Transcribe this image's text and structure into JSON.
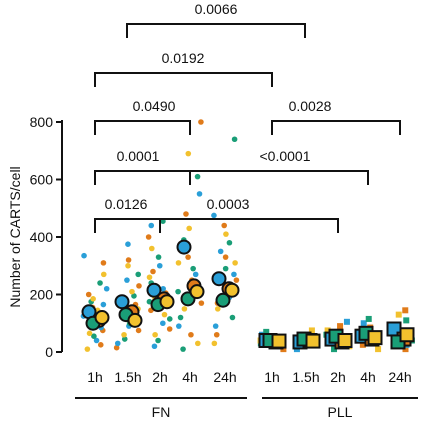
{
  "chart_data": {
    "type": "scatter",
    "ylabel": "Number of CARTS/cell",
    "ylim": [
      0,
      800
    ],
    "y_ticks": [
      0,
      200,
      400,
      600,
      800
    ],
    "groups": [
      {
        "name": "FN",
        "categories": [
          "1h",
          "1.5h",
          "2h",
          "4h",
          "24h"
        ],
        "marker": "circle"
      },
      {
        "name": "PLL",
        "categories": [
          "1h",
          "1.5h",
          "2h",
          "4h",
          "24h"
        ],
        "marker": "square"
      }
    ],
    "palette": [
      "#f2c12e",
      "#e07b1a",
      "#2a9fd8",
      "#1a9e77",
      "#bfe3ff"
    ],
    "replicate_means": [
      {
        "group": "FN",
        "category": "1h",
        "values": [
          140,
          110,
          100,
          120
        ]
      },
      {
        "group": "FN",
        "category": "1.5h",
        "values": [
          175,
          140,
          130,
          110
        ]
      },
      {
        "group": "FN",
        "category": "2h",
        "values": [
          215,
          185,
          165,
          175
        ]
      },
      {
        "group": "FN",
        "category": "4h",
        "values": [
          365,
          230,
          185,
          210
        ]
      },
      {
        "group": "FN",
        "category": "24h",
        "values": [
          255,
          220,
          180,
          215
        ]
      },
      {
        "group": "PLL",
        "category": "1h",
        "values": [
          40,
          35,
          40,
          38
        ]
      },
      {
        "group": "PLL",
        "category": "1.5h",
        "values": [
          35,
          40,
          45,
          38
        ]
      },
      {
        "group": "PLL",
        "category": "2h",
        "values": [
          45,
          35,
          55,
          40
        ]
      },
      {
        "group": "PLL",
        "category": "4h",
        "values": [
          55,
          45,
          65,
          50
        ]
      },
      {
        "group": "PLL",
        "category": "24h",
        "values": [
          80,
          45,
          35,
          60
        ]
      }
    ],
    "individual_points": [
      {
        "group": "FN",
        "category": "1h",
        "values": [
          10,
          25,
          40,
          55,
          65,
          75,
          85,
          95,
          105,
          115,
          125,
          135,
          145,
          155,
          165,
          175,
          185,
          200,
          220,
          240,
          270,
          310,
          335
        ]
      },
      {
        "group": "FN",
        "category": "1.5h",
        "values": [
          15,
          30,
          45,
          60,
          75,
          90,
          100,
          110,
          120,
          130,
          140,
          150,
          165,
          180,
          195,
          210,
          230,
          250,
          270,
          300,
          320,
          375
        ]
      },
      {
        "group": "FN",
        "category": "2h",
        "values": [
          20,
          40,
          60,
          80,
          100,
          115,
          130,
          145,
          160,
          175,
          190,
          205,
          220,
          240,
          260,
          280,
          300,
          330,
          360,
          400,
          440,
          455
        ]
      },
      {
        "group": "FN",
        "category": "4h",
        "values": [
          10,
          30,
          60,
          90,
          120,
          150,
          170,
          190,
          210,
          230,
          250,
          270,
          290,
          310,
          330,
          360,
          390,
          430,
          480,
          550,
          610,
          690,
          800
        ]
      },
      {
        "group": "FN",
        "category": "24h",
        "values": [
          30,
          60,
          90,
          120,
          150,
          170,
          190,
          210,
          230,
          250,
          270,
          290,
          310,
          330,
          350,
          380,
          410,
          440,
          475,
          740
        ]
      },
      {
        "group": "PLL",
        "category": "1h",
        "values": [
          10,
          20,
          30,
          40,
          50,
          60,
          70
        ]
      },
      {
        "group": "PLL",
        "category": "1.5h",
        "values": [
          10,
          20,
          30,
          40,
          50,
          60,
          75
        ]
      },
      {
        "group": "PLL",
        "category": "2h",
        "values": [
          10,
          20,
          30,
          45,
          60,
          75,
          90,
          105
        ]
      },
      {
        "group": "PLL",
        "category": "4h",
        "values": [
          10,
          25,
          40,
          55,
          70,
          85,
          100,
          115
        ]
      },
      {
        "group": "PLL",
        "category": "24h",
        "values": [
          10,
          25,
          40,
          55,
          70,
          90,
          110,
          130,
          145
        ]
      }
    ],
    "comparisons": [
      {
        "label": "0.0066",
        "from": "FN 1.5h",
        "to": "PLL 1h"
      },
      {
        "label": "0.0192",
        "from": "FN 1h",
        "to": "FN 24h"
      },
      {
        "label": "0.0490",
        "from": "FN 1h",
        "to": "FN 24h"
      },
      {
        "label": "0.0028",
        "from": "FN 24h",
        "to": "PLL 24h"
      },
      {
        "label": "0.0001",
        "from": "FN 1h",
        "to": "FN 4h"
      },
      {
        "label": "<0.0001",
        "from": "FN 4h",
        "to": "PLL 4h"
      },
      {
        "label": "0.0126",
        "from": "FN 1h",
        "to": "FN 2h"
      },
      {
        "label": "0.0003",
        "from": "FN 2h",
        "to": "PLL 2h"
      }
    ]
  }
}
